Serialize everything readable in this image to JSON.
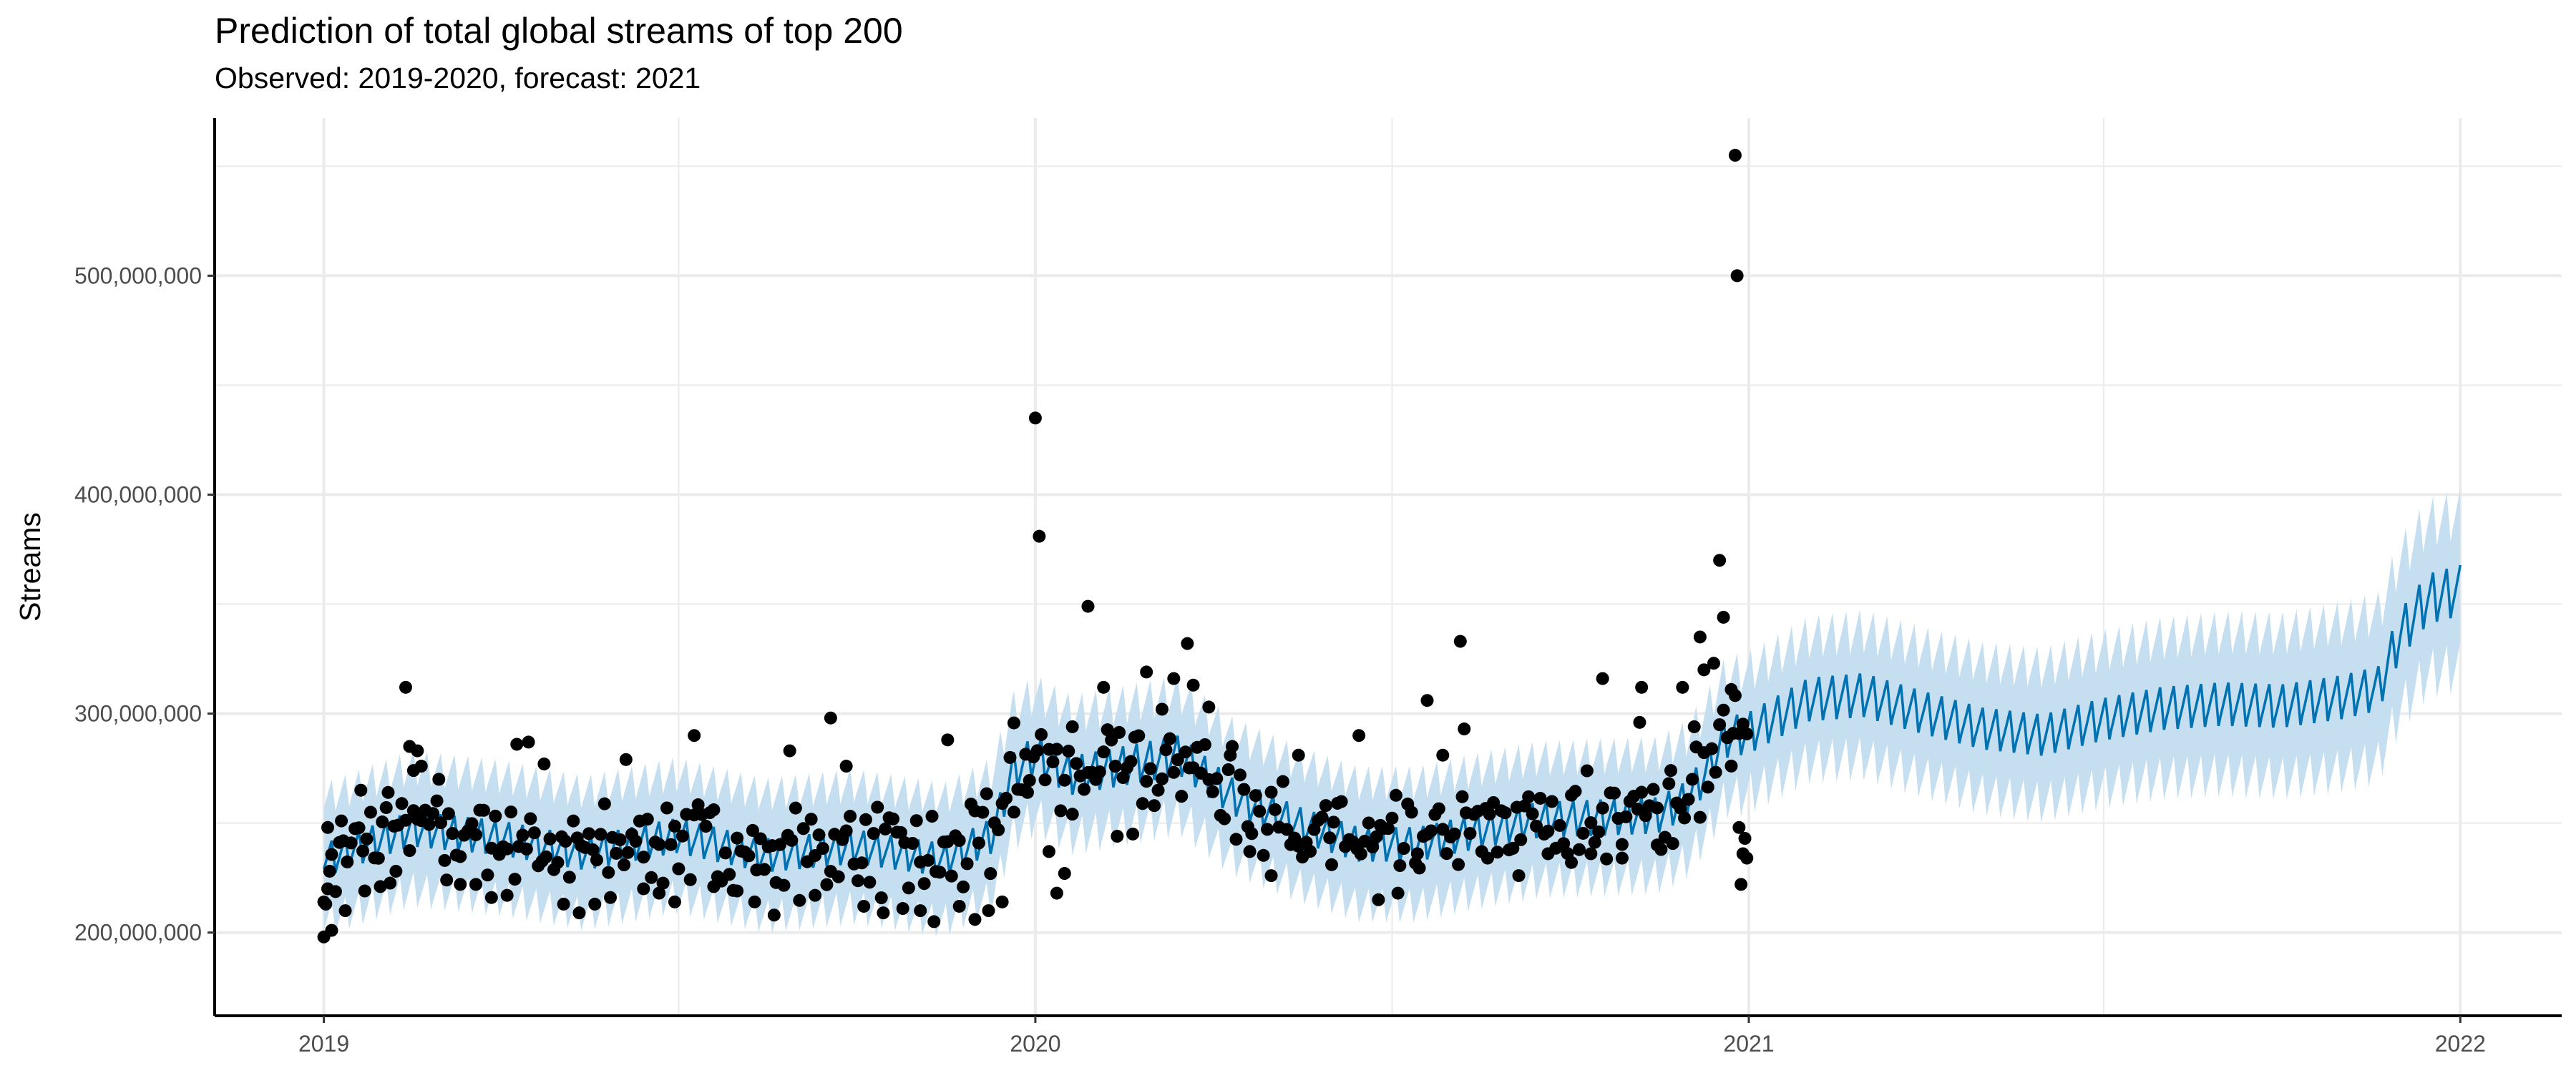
{
  "chart_data": {
    "type": "line",
    "title": "Prediction of total global streams of top 200",
    "subtitle": "Observed: 2019-2020, forecast: 2021",
    "xlabel": "",
    "ylabel": "Streams",
    "x_ticks": [
      "2019",
      "2020",
      "2021",
      "2022"
    ],
    "y_ticks": [
      "200,000,000",
      "300,000,000",
      "400,000,000",
      "500,000,000"
    ],
    "x_range": [
      "2018-11-06",
      "2022-02-22"
    ],
    "ylim": [
      162000000,
      572000000
    ],
    "grid": true,
    "legend": "none",
    "colors": {
      "forecast_line": "#0072B2",
      "interval_band": "#C6DFF0",
      "observed_points": "#000000",
      "grid": "#EBEBEB"
    },
    "series": [
      {
        "name": "",
        "kind": "observed",
        "points": [
          [
            "2019-01-01",
            198000000
          ],
          [
            "2019-01-02",
            213000000
          ],
          [
            "2019-01-03",
            220000000
          ],
          [
            "2019-01-04",
            228000000
          ],
          [
            "2019-01-05",
            201000000
          ],
          [
            "2019-01-10",
            251000000
          ],
          [
            "2019-01-12",
            210000000
          ],
          [
            "2019-01-20",
            265000000
          ],
          [
            "2019-01-22",
            219000000
          ],
          [
            "2019-01-30",
            221000000
          ],
          [
            "2019-02-03",
            264000000
          ],
          [
            "2019-02-07",
            228000000
          ],
          [
            "2019-02-12",
            312000000
          ],
          [
            "2019-02-14",
            285000000
          ],
          [
            "2019-02-16",
            274000000
          ],
          [
            "2019-02-18",
            283000000
          ],
          [
            "2019-02-20",
            276000000
          ],
          [
            "2019-03-01",
            270000000
          ],
          [
            "2019-03-05",
            224000000
          ],
          [
            "2019-03-12",
            222000000
          ],
          [
            "2019-03-20",
            222000000
          ],
          [
            "2019-03-28",
            216000000
          ],
          [
            "2019-04-05",
            217000000
          ],
          [
            "2019-04-10",
            286000000
          ],
          [
            "2019-04-16",
            287000000
          ],
          [
            "2019-04-24",
            277000000
          ],
          [
            "2019-05-04",
            213000000
          ],
          [
            "2019-05-12",
            209000000
          ],
          [
            "2019-05-20",
            213000000
          ],
          [
            "2019-05-28",
            216000000
          ],
          [
            "2019-06-05",
            279000000
          ],
          [
            "2019-06-14",
            220000000
          ],
          [
            "2019-06-22",
            218000000
          ],
          [
            "2019-06-30",
            214000000
          ],
          [
            "2019-07-10",
            290000000
          ],
          [
            "2019-07-20",
            221000000
          ],
          [
            "2019-08-01",
            219000000
          ],
          [
            "2019-08-10",
            214000000
          ],
          [
            "2019-08-20",
            208000000
          ],
          [
            "2019-08-28",
            283000000
          ],
          [
            "2019-09-10",
            217000000
          ],
          [
            "2019-09-18",
            298000000
          ],
          [
            "2019-09-26",
            276000000
          ],
          [
            "2019-10-05",
            212000000
          ],
          [
            "2019-10-15",
            209000000
          ],
          [
            "2019-10-25",
            211000000
          ],
          [
            "2019-11-03",
            210000000
          ],
          [
            "2019-11-10",
            205000000
          ],
          [
            "2019-11-17",
            288000000
          ],
          [
            "2019-11-23",
            212000000
          ],
          [
            "2019-12-01",
            206000000
          ],
          [
            "2019-12-08",
            210000000
          ],
          [
            "2019-12-15",
            214000000
          ],
          [
            "2019-12-21",
            255000000
          ],
          [
            "2019-12-28",
            264000000
          ],
          [
            "2020-01-01",
            435000000
          ],
          [
            "2020-01-03",
            381000000
          ],
          [
            "2020-01-08",
            237000000
          ],
          [
            "2020-01-12",
            218000000
          ],
          [
            "2020-01-16",
            227000000
          ],
          [
            "2020-01-20",
            294000000
          ],
          [
            "2020-01-28",
            349000000
          ],
          [
            "2020-02-05",
            312000000
          ],
          [
            "2020-02-12",
            244000000
          ],
          [
            "2020-02-20",
            245000000
          ],
          [
            "2020-02-27",
            319000000
          ],
          [
            "2020-03-06",
            302000000
          ],
          [
            "2020-03-12",
            316000000
          ],
          [
            "2020-03-19",
            332000000
          ],
          [
            "2020-03-22",
            313000000
          ],
          [
            "2020-03-30",
            303000000
          ],
          [
            "2020-04-10",
            281000000
          ],
          [
            "2020-04-20",
            237000000
          ],
          [
            "2020-05-01",
            226000000
          ],
          [
            "2020-05-15",
            281000000
          ],
          [
            "2020-06-01",
            231000000
          ],
          [
            "2020-06-15",
            290000000
          ],
          [
            "2020-06-25",
            215000000
          ],
          [
            "2020-07-05",
            218000000
          ],
          [
            "2020-07-15",
            236000000
          ],
          [
            "2020-07-20",
            306000000
          ],
          [
            "2020-07-28",
            281000000
          ],
          [
            "2020-08-06",
            333000000
          ],
          [
            "2020-08-08",
            293000000
          ],
          [
            "2020-08-20",
            234000000
          ],
          [
            "2020-09-05",
            226000000
          ],
          [
            "2020-09-20",
            236000000
          ],
          [
            "2020-10-02",
            232000000
          ],
          [
            "2020-10-12",
            236000000
          ],
          [
            "2020-10-18",
            316000000
          ],
          [
            "2020-10-28",
            234000000
          ],
          [
            "2020-11-06",
            296000000
          ],
          [
            "2020-11-07",
            312000000
          ],
          [
            "2020-11-15",
            240000000
          ],
          [
            "2020-11-22",
            274000000
          ],
          [
            "2020-11-28",
            312000000
          ],
          [
            "2020-12-04",
            294000000
          ],
          [
            "2020-12-07",
            335000000
          ],
          [
            "2020-12-09",
            320000000
          ],
          [
            "2020-12-14",
            323000000
          ],
          [
            "2020-12-17",
            370000000
          ],
          [
            "2020-12-19",
            344000000
          ],
          [
            "2020-12-21",
            289000000
          ],
          [
            "2020-12-23",
            311000000
          ],
          [
            "2020-12-24",
            291000000
          ],
          [
            "2020-12-25",
            555000000
          ],
          [
            "2020-12-26",
            500000000
          ],
          [
            "2020-12-27",
            248000000
          ],
          [
            "2020-12-28",
            222000000
          ],
          [
            "2020-12-29",
            236000000
          ],
          [
            "2020-12-30",
            243000000
          ],
          [
            "2020-12-31",
            234000000
          ]
        ]
      },
      {
        "name": "",
        "kind": "forecast",
        "weekly_pattern": [
          1.0,
          1.012,
          1.025,
          1.038,
          1.051,
          1.02,
          0.985
        ],
        "trend": [
          [
            "2019-01-01",
            229000000
          ],
          [
            "2019-02-15",
            243000000
          ],
          [
            "2019-04-01",
            239000000
          ],
          [
            "2019-05-15",
            232000000
          ],
          [
            "2019-07-01",
            240000000
          ],
          [
            "2019-08-15",
            231000000
          ],
          [
            "2019-10-01",
            235000000
          ],
          [
            "2019-11-15",
            229000000
          ],
          [
            "2019-12-10",
            240000000
          ],
          [
            "2019-12-20",
            268000000
          ],
          [
            "2020-01-01",
            276000000
          ],
          [
            "2020-01-20",
            267000000
          ],
          [
            "2020-02-20",
            272000000
          ],
          [
            "2020-03-15",
            276000000
          ],
          [
            "2020-04-10",
            258000000
          ],
          [
            "2020-05-15",
            245000000
          ],
          [
            "2020-06-15",
            236000000
          ],
          [
            "2020-07-15",
            236000000
          ],
          [
            "2020-08-15",
            242000000
          ],
          [
            "2020-09-15",
            247000000
          ],
          [
            "2020-10-15",
            248000000
          ],
          [
            "2020-11-15",
            249000000
          ],
          [
            "2020-11-30",
            256000000
          ],
          [
            "2020-12-10",
            268000000
          ],
          [
            "2020-12-20",
            284000000
          ],
          [
            "2021-01-01",
            286000000
          ],
          [
            "2021-02-01",
            301000000
          ],
          [
            "2021-03-01",
            303000000
          ],
          [
            "2021-04-01",
            295000000
          ],
          [
            "2021-05-01",
            288000000
          ],
          [
            "2021-06-01",
            285000000
          ],
          [
            "2021-07-01",
            292000000
          ],
          [
            "2021-08-01",
            297000000
          ],
          [
            "2021-09-01",
            299000000
          ],
          [
            "2021-10-01",
            298000000
          ],
          [
            "2021-11-01",
            302000000
          ],
          [
            "2021-11-20",
            306000000
          ],
          [
            "2021-12-01",
            330000000
          ],
          [
            "2021-12-15",
            346000000
          ],
          [
            "2022-01-01",
            350000000
          ]
        ],
        "interval_halfwidth": 28000000
      }
    ]
  }
}
